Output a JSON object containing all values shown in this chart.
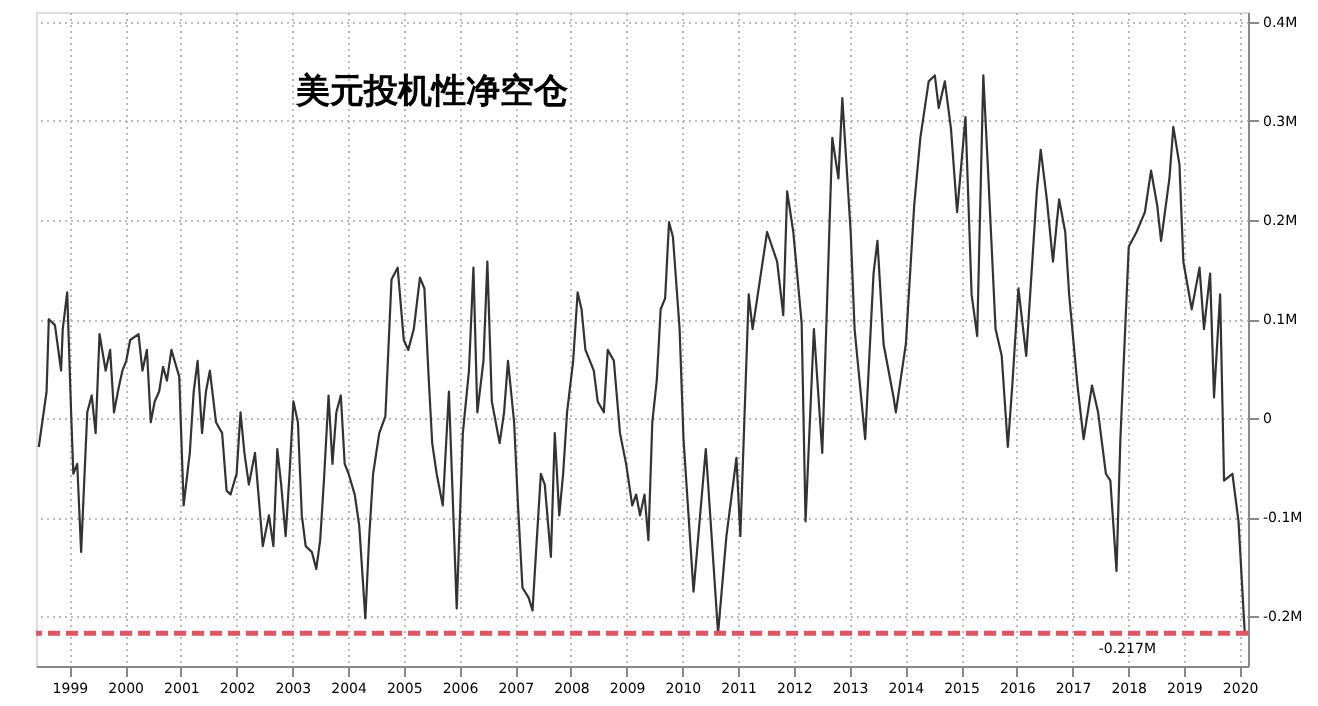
{
  "chart_data": {
    "type": "line",
    "title": "美元投机性净空仓",
    "x": [
      1998.95,
      1999.09,
      1999.13,
      1999.24,
      1999.35,
      1999.38,
      1999.46,
      1999.53,
      1999.57,
      1999.64,
      1999.71,
      1999.82,
      1999.9,
      1999.97,
      2000.04,
      2000.15,
      2000.23,
      2000.3,
      2000.37,
      2000.45,
      2000.52,
      2000.59,
      2000.74,
      2000.81,
      2000.89,
      2000.96,
      2001.03,
      2001.11,
      2001.18,
      2001.25,
      2001.33,
      2001.47,
      2001.55,
      2001.66,
      2001.73,
      2001.8,
      2001.88,
      2001.95,
      2002.02,
      2002.13,
      2002.24,
      2002.32,
      2002.39,
      2002.5,
      2002.57,
      2002.64,
      2002.72,
      2002.83,
      2002.97,
      2003.08,
      2003.16,
      2003.23,
      2003.3,
      2003.38,
      2003.45,
      2003.52,
      2003.6,
      2003.67,
      2003.74,
      2003.85,
      2003.93,
      2004.0,
      2004.07,
      2004.15,
      2004.22,
      2004.29,
      2004.37,
      2004.44,
      2004.51,
      2004.62,
      2004.7,
      2004.81,
      2004.88,
      2004.95,
      2005.06,
      2005.17,
      2005.28,
      2005.39,
      2005.5,
      2005.58,
      2005.68,
      2005.79,
      2005.87,
      2005.94,
      2006.01,
      2006.09,
      2006.2,
      2006.31,
      2006.45,
      2006.56,
      2006.67,
      2006.75,
      2006.82,
      2006.93,
      2007.0,
      2007.08,
      2007.22,
      2007.3,
      2007.37,
      2007.48,
      2007.55,
      2007.63,
      2007.74,
      2007.81,
      2007.88,
      2007.96,
      2008.03,
      2008.14,
      2008.21,
      2008.29,
      2008.36,
      2008.43,
      2008.54,
      2008.62,
      2008.69,
      2008.76,
      2008.84,
      2008.91,
      2008.98,
      2009.09,
      2009.16,
      2009.27,
      2009.38,
      2009.49,
      2009.6,
      2009.67,
      2009.74,
      2009.82,
      2009.89,
      2009.96,
      2010.04,
      2010.11,
      2010.19,
      2010.26,
      2010.33,
      2010.45,
      2010.52,
      2010.7,
      2010.92,
      2011.14,
      2011.29,
      2011.47,
      2011.54,
      2011.69,
      2011.76,
      2012.02,
      2012.2,
      2012.31,
      2012.38,
      2012.49,
      2012.64,
      2012.71,
      2012.86,
      2013.01,
      2013.19,
      2013.3,
      2013.37,
      2013.52,
      2013.59,
      2013.78,
      2013.93,
      2014.0,
      2014.11,
      2014.29,
      2014.33,
      2014.51,
      2014.66,
      2014.77,
      2014.92,
      2015.03,
      2015.1,
      2015.21,
      2015.32,
      2015.43,
      2015.58,
      2015.69,
      2015.79,
      2015.9,
      2015.98,
      2016.12,
      2016.23,
      2016.34,
      2016.42,
      2016.53,
      2016.67,
      2016.86,
      2016.93,
      2017.04,
      2017.15,
      2017.26,
      2017.37,
      2017.44,
      2017.59,
      2017.7,
      2017.85,
      2017.96,
      2018.1,
      2018.18,
      2018.29,
      2018.36,
      2018.51,
      2018.65,
      2018.8,
      2018.91,
      2019.02,
      2019.09,
      2019.24,
      2019.31,
      2019.42,
      2019.49,
      2019.64,
      2019.78,
      2019.86,
      2019.97,
      2020.04,
      2020.15,
      2020.22,
      2020.37,
      2020.48,
      2020.59
    ],
    "series": [
      {
        "color": "#333333",
        "values": [
          -0.029,
          0.027,
          0.1,
          0.094,
          0.048,
          0.09,
          0.127,
          0.006,
          -0.056,
          -0.046,
          -0.135,
          0.006,
          0.023,
          -0.015,
          0.085,
          0.048,
          0.069,
          0.006,
          0.027,
          0.048,
          0.058,
          0.079,
          0.085,
          0.048,
          0.069,
          -0.004,
          0.017,
          0.027,
          0.052,
          0.038,
          0.069,
          0.042,
          -0.088,
          -0.035,
          0.027,
          0.058,
          -0.015,
          0.027,
          0.048,
          -0.004,
          -0.015,
          -0.073,
          -0.077,
          -0.056,
          0.006,
          -0.035,
          -0.067,
          -0.035,
          -0.129,
          -0.098,
          -0.129,
          -0.031,
          -0.067,
          -0.119,
          -0.056,
          0.017,
          -0.004,
          -0.098,
          -0.129,
          -0.135,
          -0.152,
          -0.123,
          -0.06,
          0.023,
          -0.046,
          0.006,
          0.023,
          -0.046,
          -0.056,
          -0.077,
          -0.108,
          -0.202,
          -0.119,
          -0.056,
          -0.015,
          0.002,
          0.14,
          0.152,
          0.079,
          0.069,
          0.09,
          0.142,
          0.131,
          0.048,
          -0.025,
          -0.056,
          -0.088,
          0.027,
          -0.192,
          -0.015,
          0.048,
          0.152,
          0.006,
          0.058,
          0.158,
          0.017,
          -0.025,
          0.006,
          0.058,
          -0.004,
          -0.088,
          -0.171,
          -0.181,
          -0.194,
          -0.129,
          -0.056,
          -0.067,
          -0.14,
          -0.015,
          -0.098,
          -0.056,
          0.006,
          0.058,
          0.127,
          0.11,
          0.069,
          0.058,
          0.048,
          0.017,
          0.006,
          0.069,
          0.058,
          -0.015,
          -0.046,
          -0.088,
          -0.077,
          -0.098,
          -0.077,
          -0.123,
          -0.004,
          0.038,
          0.11,
          0.121,
          0.198,
          0.183,
          0.09,
          -0.021,
          -0.175,
          -0.031,
          -0.217,
          -0.119,
          -0.04,
          -0.119,
          0.125,
          0.09,
          0.188,
          0.158,
          0.104,
          0.229,
          0.188,
          0.096,
          -0.104,
          0.09,
          -0.035,
          0.283,
          0.242,
          0.323,
          0.188,
          0.09,
          -0.021,
          0.146,
          0.179,
          0.075,
          0.021,
          0.006,
          0.075,
          0.215,
          0.283,
          0.34,
          0.346,
          0.313,
          0.34,
          0.292,
          0.208,
          0.304,
          0.125,
          0.083,
          0.346,
          0.256,
          0.09,
          0.063,
          -0.029,
          0.033,
          0.131,
          0.063,
          0.229,
          0.271,
          0.221,
          0.158,
          0.221,
          0.188,
          0.125,
          0.033,
          -0.021,
          0.033,
          0.006,
          -0.056,
          -0.063,
          -0.154,
          -0.021,
          0.173,
          0.188,
          0.208,
          0.25,
          0.215,
          0.179,
          0.242,
          0.294,
          0.256,
          0.158,
          0.11,
          0.152,
          0.09,
          0.146,
          0.021,
          0.125,
          -0.063,
          -0.056,
          -0.104,
          -0.215
        ]
      }
    ],
    "xlim": [
      1998.9,
      2020.65
    ],
    "xticks": [
      {
        "value": 1999.5,
        "label": "1999"
      },
      {
        "value": 2000.5,
        "label": "2000"
      },
      {
        "value": 2001.5,
        "label": "2001"
      },
      {
        "value": 2002.5,
        "label": "2002"
      },
      {
        "value": 2003.5,
        "label": "2003"
      },
      {
        "value": 2004.5,
        "label": "2004"
      },
      {
        "value": 2005.5,
        "label": "2005"
      },
      {
        "value": 2006.5,
        "label": "2006"
      },
      {
        "value": 2007.5,
        "label": "2007"
      },
      {
        "value": 2008.5,
        "label": "2008"
      },
      {
        "value": 2009.5,
        "label": "2009"
      },
      {
        "value": 2010.5,
        "label": "2010"
      },
      {
        "value": 2011.5,
        "label": "2011"
      },
      {
        "value": 2012.5,
        "label": "2012"
      },
      {
        "value": 2013.5,
        "label": "2013"
      },
      {
        "value": 2014.5,
        "label": "2014"
      },
      {
        "value": 2015.5,
        "label": "2015"
      },
      {
        "value": 2016.5,
        "label": "2016"
      },
      {
        "value": 2017.5,
        "label": "2017"
      },
      {
        "value": 2018.5,
        "label": "2018"
      },
      {
        "value": 2019.5,
        "label": "2019"
      },
      {
        "value": 2020.5,
        "label": "2020"
      }
    ],
    "ylim": [
      -0.25,
      0.41
    ],
    "yticks": [
      {
        "value": 0.4,
        "label": "0.4M"
      },
      {
        "value": 0.3,
        "label": "0.3M"
      },
      {
        "value": 0.2,
        "label": "0.2M"
      },
      {
        "value": 0.1,
        "label": "0.1M"
      },
      0,
      {
        "value": -0.1,
        "label": "-0.1M"
      },
      {
        "value": -0.2,
        "label": "-0.2M"
      }
    ],
    "ref_lines": [
      {
        "axis": "y",
        "value": -0.217,
        "label": "-0.217M",
        "color": "#e05560",
        "line_style": "dashed"
      }
    ],
    "grid": true,
    "line_style": "solid",
    "marker": "none"
  }
}
